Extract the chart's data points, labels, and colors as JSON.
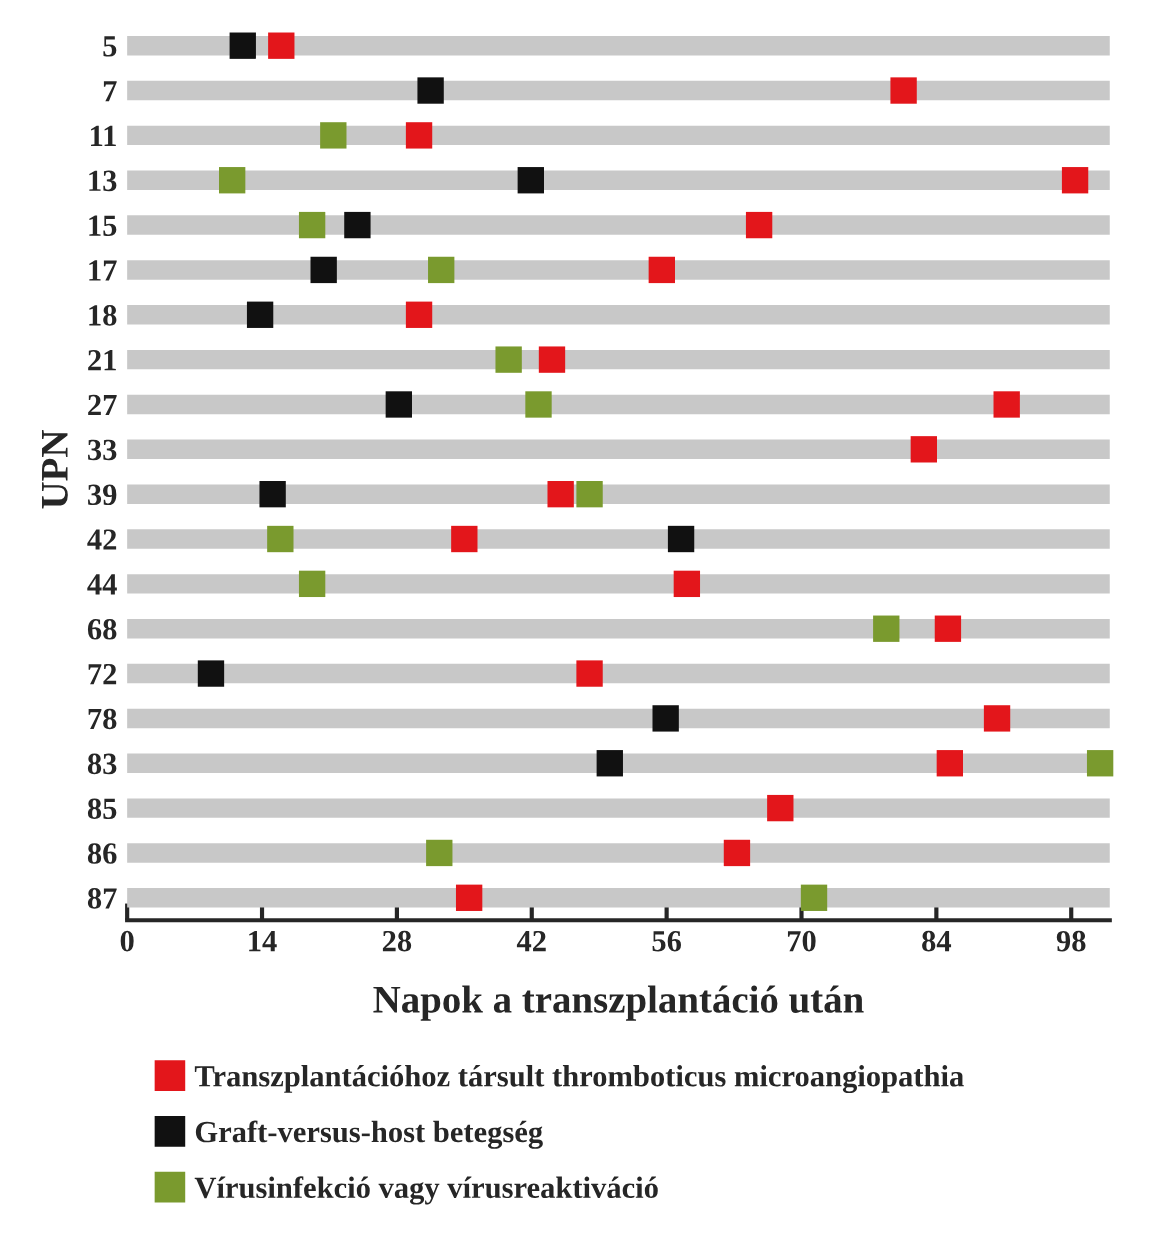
{
  "chart_data": {
    "type": "scatter",
    "xlabel": "Napok a transzplantáció után",
    "ylabel": "UPN",
    "orientation": "horizontal",
    "categories": [
      "5",
      "7",
      "11",
      "13",
      "15",
      "17",
      "18",
      "21",
      "27",
      "33",
      "39",
      "42",
      "44",
      "68",
      "72",
      "78",
      "83",
      "85",
      "86",
      "87"
    ],
    "series": [
      {
        "name": "Transzplantációhoz társult thromboticus microangiopathia",
        "color": "#e3161b",
        "values": [
          16,
          80.6,
          30.3,
          98.4,
          65.6,
          55.5,
          30.3,
          44.1,
          91.3,
          82.7,
          45,
          35,
          58.1,
          85.2,
          48,
          90.3,
          85.4,
          67.8,
          63.3,
          35.5
        ]
      },
      {
        "name": "Graft-versus-host betegség",
        "color": "#111111",
        "values": [
          12,
          31.5,
          null,
          41.9,
          23.9,
          20.4,
          13.8,
          null,
          28.2,
          null,
          15.1,
          57.5,
          null,
          null,
          8.7,
          55.9,
          50.1,
          null,
          null,
          null
        ]
      },
      {
        "name": "Vírusinfekció vagy vírusreaktiváció",
        "color": "#7a9a2e",
        "values": [
          null,
          null,
          21.4,
          10.9,
          19.2,
          32.6,
          null,
          39.6,
          42.7,
          null,
          48,
          15.9,
          19.2,
          78.8,
          null,
          null,
          101,
          null,
          32.4,
          71.3
        ]
      }
    ],
    "xlim": [
      0,
      102
    ],
    "xticks": [
      0,
      14,
      28,
      42,
      56,
      70,
      84,
      98
    ],
    "grid": "y",
    "marker": "square",
    "legend": "bottom"
  }
}
